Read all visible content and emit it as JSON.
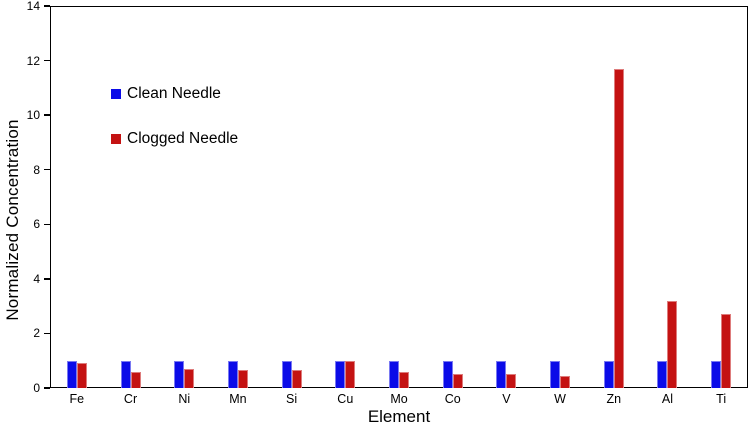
{
  "chart_data": {
    "type": "bar",
    "title": "",
    "xlabel": "Element",
    "ylabel": "Normalized Concentration",
    "categories": [
      "Fe",
      "Cr",
      "Ni",
      "Mn",
      "Si",
      "Cu",
      "Mo",
      "Co",
      "V",
      "W",
      "Zn",
      "Al",
      "Ti"
    ],
    "series": [
      {
        "name": "Clean Needle",
        "color": "#0b0be8",
        "values": [
          1.0,
          1.0,
          1.0,
          1.0,
          1.0,
          1.0,
          1.0,
          1.0,
          1.0,
          1.0,
          1.0,
          1.0,
          1.0
        ]
      },
      {
        "name": "Clogged Needle",
        "color": "#c41212",
        "values": [
          0.9,
          0.6,
          0.7,
          0.65,
          0.65,
          1.0,
          0.6,
          0.5,
          0.5,
          0.45,
          11.7,
          3.2,
          2.7
        ]
      }
    ],
    "ylim": [
      0,
      14
    ],
    "yticks": [
      0,
      2,
      4,
      6,
      8,
      10,
      12,
      14
    ],
    "grid": false,
    "legend_position": "upper-left-inside",
    "axis_color": "#000000",
    "background_color": "#ffffff"
  }
}
